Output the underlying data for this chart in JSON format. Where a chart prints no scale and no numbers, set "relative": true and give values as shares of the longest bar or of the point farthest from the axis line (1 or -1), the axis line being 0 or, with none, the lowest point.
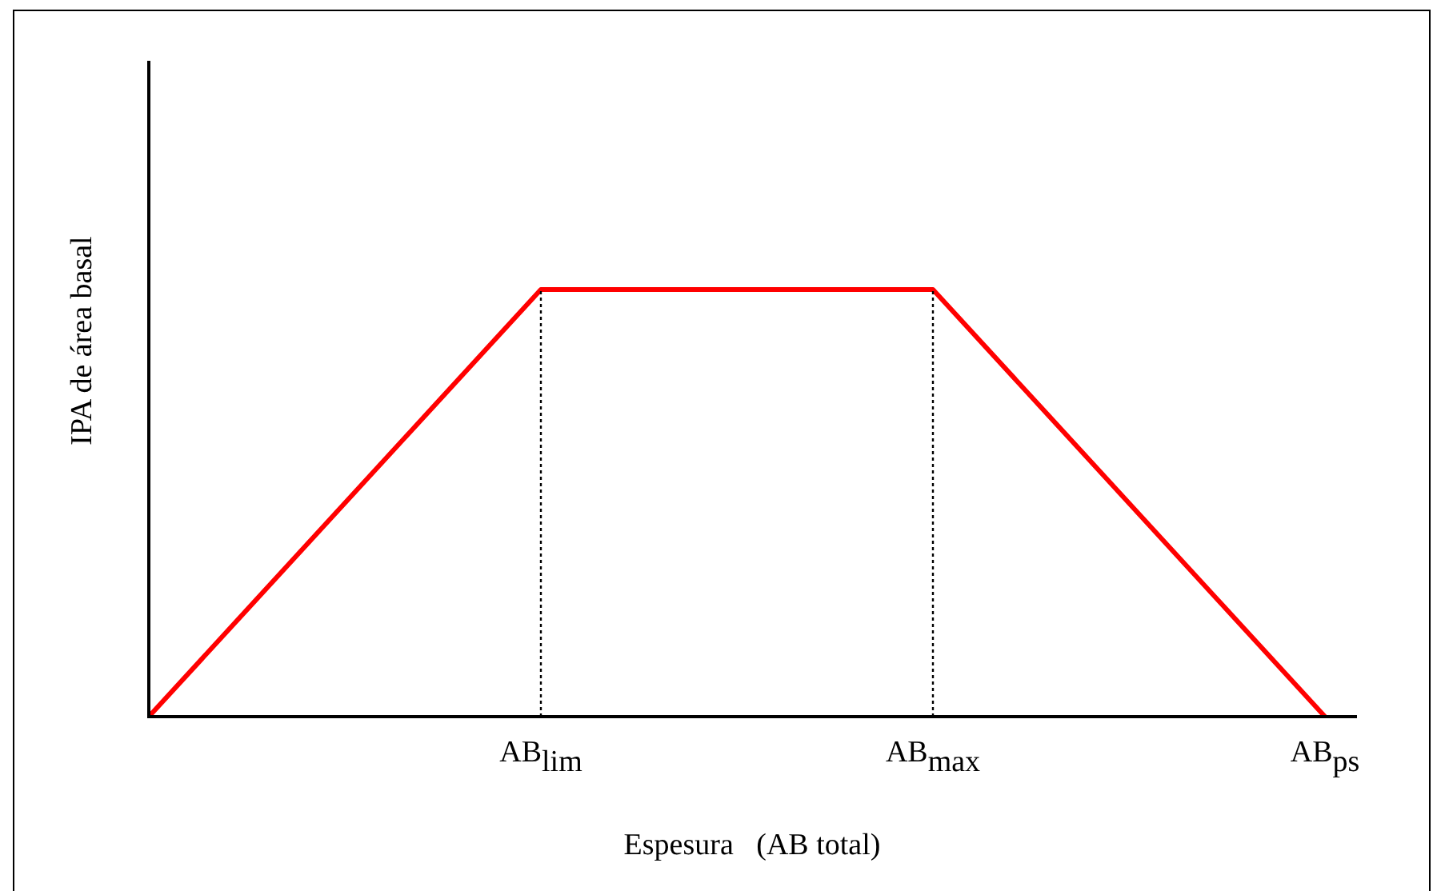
{
  "chart_data": {
    "type": "line",
    "relative": true,
    "xlabel": "Espesura   (AB total)",
    "ylabel": "IPA de área basal",
    "categories": [
      null,
      "AB$_{lim}$",
      "AB$_{max}$",
      "AB$_{ps}$"
    ],
    "series": [
      {
        "color": "#ff0000",
        "values": [
          0,
          1,
          1,
          0
        ]
      }
    ],
    "ref_lines": [
      {
        "axis": "x",
        "value": "AB$_{lim}$",
        "line_style": "dotted",
        "color": "#000000"
      },
      {
        "axis": "x",
        "value": "AB$_{max}$",
        "line_style": "dotted",
        "color": "#000000"
      }
    ],
    "grid": false,
    "legend": false,
    "marker": "none",
    "line_style": "solid"
  }
}
